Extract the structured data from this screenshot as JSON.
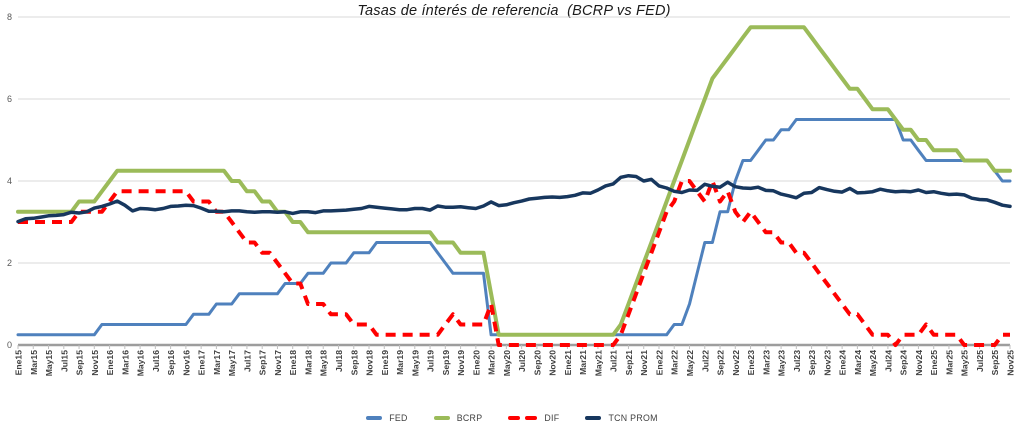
{
  "chart_data": {
    "type": "line",
    "title": "Tasas de ínterés de referencia  (BCRP vs FED)",
    "ylabel": "",
    "xlabel": "",
    "ylim": [
      0,
      8
    ],
    "yticks": [
      0,
      2,
      4,
      6,
      8
    ],
    "grid": true,
    "legend_position": "bottom",
    "x_note": "monthly values Ene15-Nov25; axis labels every 2 months",
    "x_labels": [
      "Ene15",
      "Mar15",
      "May15",
      "Jul15",
      "Sep15",
      "Nov15",
      "Ene16",
      "Mar16",
      "May16",
      "Jul16",
      "Sep16",
      "Nov16",
      "Ene17",
      "Mar17",
      "May17",
      "Jul17",
      "Sep17",
      "Nov17",
      "Ene18",
      "Mar18",
      "May18",
      "Jul18",
      "Sep18",
      "Nov18",
      "Ene19",
      "Mar19",
      "May19",
      "Jul19",
      "Sep19",
      "Nov19",
      "Ene20",
      "Mar20",
      "May20",
      "Jul20",
      "Sep20",
      "Nov20",
      "Ene21",
      "Mar21",
      "May21",
      "Jul21",
      "Sep21",
      "Nov21",
      "Ene22",
      "Mar22",
      "May22",
      "Jul22",
      "Sep22",
      "Nov22",
      "Ene23",
      "Mar23",
      "May23",
      "Jul23",
      "Sep23",
      "Nov23",
      "Ene24",
      "Mar24",
      "May24",
      "Jul24",
      "Sep24",
      "Nov24",
      "Ene25",
      "Mar25",
      "May25",
      "Jul25",
      "Sep25",
      "Nov25"
    ],
    "series": [
      {
        "name": "FED",
        "color": "#4F81BD",
        "dashed": false,
        "values": [
          0.25,
          0.25,
          0.25,
          0.25,
          0.25,
          0.25,
          0.25,
          0.25,
          0.25,
          0.25,
          0.25,
          0.5,
          0.5,
          0.5,
          0.5,
          0.5,
          0.5,
          0.5,
          0.5,
          0.5,
          0.5,
          0.5,
          0.5,
          0.75,
          0.75,
          0.75,
          1,
          1,
          1,
          1.25,
          1.25,
          1.25,
          1.25,
          1.25,
          1.25,
          1.5,
          1.5,
          1.5,
          1.75,
          1.75,
          1.75,
          2,
          2,
          2,
          2.25,
          2.25,
          2.25,
          2.5,
          2.5,
          2.5,
          2.5,
          2.5,
          2.5,
          2.5,
          2.5,
          2.25,
          2,
          1.75,
          1.75,
          1.75,
          1.75,
          1.75,
          0.25,
          0.25,
          0.25,
          0.25,
          0.25,
          0.25,
          0.25,
          0.25,
          0.25,
          0.25,
          0.25,
          0.25,
          0.25,
          0.25,
          0.25,
          0.25,
          0.25,
          0.25,
          0.25,
          0.25,
          0.25,
          0.25,
          0.25,
          0.25,
          0.5,
          0.5,
          1,
          1.75,
          2.5,
          2.5,
          3.25,
          3.25,
          4,
          4.5,
          4.5,
          4.75,
          5,
          5,
          5.25,
          5.25,
          5.5,
          5.5,
          5.5,
          5.5,
          5.5,
          5.5,
          5.5,
          5.5,
          5.5,
          5.5,
          5.5,
          5.5,
          5.5,
          5.5,
          5,
          5,
          4.75,
          4.5,
          4.5,
          4.5,
          4.5,
          4.5,
          4.5,
          4.5,
          4.5,
          4.5,
          4.25,
          4,
          4
        ]
      },
      {
        "name": "BCRP",
        "color": "#9BBB59",
        "dashed": false,
        "values": [
          3.25,
          3.25,
          3.25,
          3.25,
          3.25,
          3.25,
          3.25,
          3.25,
          3.5,
          3.5,
          3.5,
          3.75,
          4,
          4.25,
          4.25,
          4.25,
          4.25,
          4.25,
          4.25,
          4.25,
          4.25,
          4.25,
          4.25,
          4.25,
          4.25,
          4.25,
          4.25,
          4.25,
          4,
          4,
          3.75,
          3.75,
          3.5,
          3.5,
          3.25,
          3.25,
          3,
          3,
          2.75,
          2.75,
          2.75,
          2.75,
          2.75,
          2.75,
          2.75,
          2.75,
          2.75,
          2.75,
          2.75,
          2.75,
          2.75,
          2.75,
          2.75,
          2.75,
          2.75,
          2.5,
          2.5,
          2.5,
          2.25,
          2.25,
          2.25,
          2.25,
          1.25,
          0.25,
          0.25,
          0.25,
          0.25,
          0.25,
          0.25,
          0.25,
          0.25,
          0.25,
          0.25,
          0.25,
          0.25,
          0.25,
          0.25,
          0.25,
          0.25,
          0.5,
          1,
          1.5,
          2,
          2.5,
          3,
          3.5,
          4,
          4.5,
          5,
          5.5,
          6,
          6.5,
          6.75,
          7,
          7.25,
          7.5,
          7.75,
          7.75,
          7.75,
          7.75,
          7.75,
          7.75,
          7.75,
          7.75,
          7.5,
          7.25,
          7,
          6.75,
          6.5,
          6.25,
          6.25,
          6,
          5.75,
          5.75,
          5.75,
          5.5,
          5.25,
          5.25,
          5,
          5,
          4.75,
          4.75,
          4.75,
          4.75,
          4.5,
          4.5,
          4.5,
          4.5,
          4.25,
          4.25,
          4.25
        ]
      },
      {
        "name": "DIF",
        "color": "#FF0000",
        "dashed": true,
        "values": [
          3,
          3,
          3,
          3,
          3,
          3,
          3,
          3,
          3.25,
          3.25,
          3.25,
          3.25,
          3.5,
          3.75,
          3.75,
          3.75,
          3.75,
          3.75,
          3.75,
          3.75,
          3.75,
          3.75,
          3.75,
          3.5,
          3.5,
          3.5,
          3.25,
          3.25,
          3,
          2.75,
          2.5,
          2.5,
          2.25,
          2.25,
          2,
          1.75,
          1.5,
          1.5,
          1,
          1,
          1,
          0.75,
          0.75,
          0.75,
          0.5,
          0.5,
          0.5,
          0.25,
          0.25,
          0.25,
          0.25,
          0.25,
          0.25,
          0.25,
          0.25,
          0.25,
          0.5,
          0.75,
          0.5,
          0.5,
          0.5,
          0.5,
          1,
          0,
          0,
          0,
          0,
          0,
          0,
          0,
          0,
          0,
          0,
          0,
          0,
          0,
          0,
          0,
          0,
          0.25,
          0.75,
          1.25,
          1.75,
          2.25,
          2.75,
          3.25,
          3.5,
          4,
          4,
          3.75,
          3.5,
          4,
          3.5,
          3.75,
          3.25,
          3,
          3.25,
          3,
          2.75,
          2.75,
          2.5,
          2.5,
          2.25,
          2.25,
          2,
          1.75,
          1.5,
          1.25,
          1,
          0.75,
          0.75,
          0.5,
          0.25,
          0.25,
          0.25,
          0,
          0.25,
          0.25,
          0.25,
          0.5,
          0.25,
          0.25,
          0.25,
          0.25,
          0,
          0,
          0,
          0,
          0,
          0.25,
          0.25
        ]
      },
      {
        "name": "TCN PROM",
        "color": "#17375E",
        "dashed": false,
        "values": [
          3.01,
          3.08,
          3.09,
          3.12,
          3.15,
          3.16,
          3.18,
          3.24,
          3.22,
          3.25,
          3.34,
          3.38,
          3.44,
          3.51,
          3.41,
          3.27,
          3.33,
          3.32,
          3.3,
          3.33,
          3.38,
          3.39,
          3.41,
          3.4,
          3.34,
          3.26,
          3.26,
          3.25,
          3.27,
          3.27,
          3.25,
          3.24,
          3.25,
          3.25,
          3.24,
          3.25,
          3.21,
          3.25,
          3.25,
          3.23,
          3.27,
          3.27,
          3.28,
          3.29,
          3.31,
          3.33,
          3.38,
          3.36,
          3.34,
          3.32,
          3.3,
          3.3,
          3.33,
          3.33,
          3.29,
          3.39,
          3.36,
          3.36,
          3.37,
          3.35,
          3.33,
          3.39,
          3.49,
          3.4,
          3.42,
          3.47,
          3.51,
          3.56,
          3.58,
          3.6,
          3.61,
          3.6,
          3.62,
          3.65,
          3.71,
          3.7,
          3.78,
          3.88,
          3.93,
          4.09,
          4.13,
          4.11,
          4.0,
          4.04,
          3.88,
          3.83,
          3.75,
          3.72,
          3.78,
          3.77,
          3.92,
          3.87,
          3.85,
          3.97,
          3.86,
          3.83,
          3.82,
          3.85,
          3.77,
          3.76,
          3.68,
          3.64,
          3.59,
          3.7,
          3.72,
          3.84,
          3.79,
          3.75,
          3.73,
          3.82,
          3.71,
          3.72,
          3.74,
          3.8,
          3.76,
          3.74,
          3.75,
          3.74,
          3.78,
          3.72,
          3.74,
          3.7,
          3.67,
          3.68,
          3.66,
          3.58,
          3.55,
          3.54,
          3.48,
          3.41,
          3.38
        ]
      }
    ]
  }
}
